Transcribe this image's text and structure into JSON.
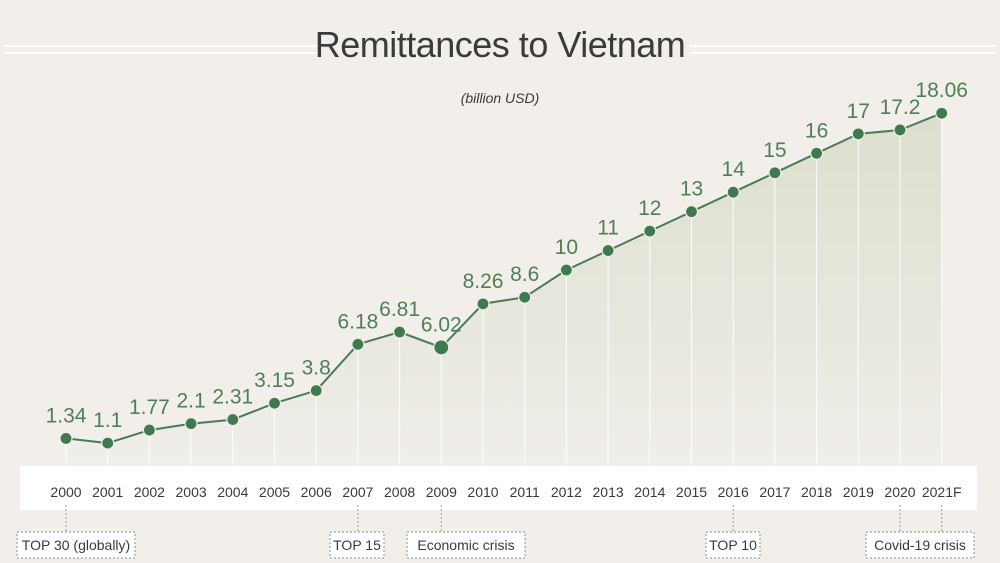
{
  "chart_data": {
    "type": "area",
    "title": "Remittances to Vietnam",
    "subtitle": "(billion USD)",
    "categories": [
      "2000",
      "2001",
      "2002",
      "2003",
      "2004",
      "2005",
      "2006",
      "2007",
      "2008",
      "2009",
      "2010",
      "2011",
      "2012",
      "2013",
      "2014",
      "2015",
      "2016",
      "2017",
      "2018",
      "2019",
      "2020",
      "2021F"
    ],
    "values": [
      1.34,
      1.1,
      1.77,
      2.1,
      2.31,
      3.15,
      3.8,
      6.18,
      6.81,
      6.02,
      8.26,
      8.6,
      10,
      11,
      12,
      13,
      14,
      15,
      16,
      17,
      17.2,
      18.06
    ],
    "value_labels": [
      "1.34",
      "1.1",
      "1.77",
      "2.1",
      "2.31",
      "3.15",
      "3.8",
      "6.18",
      "6.81",
      "6.02",
      "8.26",
      "8.6",
      "10",
      "11",
      "12",
      "13",
      "14",
      "15",
      "16",
      "17",
      "17.2",
      "18.06"
    ],
    "annotations": [
      {
        "category": "2000",
        "text": "TOP 30 (globally)"
      },
      {
        "category": "2007",
        "text": "TOP 15"
      },
      {
        "category": "2009",
        "text": "Economic crisis"
      },
      {
        "category": "2016",
        "text": "TOP 10"
      },
      {
        "category": "2020",
        "text": "Covid-19 crisis"
      },
      {
        "category": "2021F",
        "text": "Covid-19 crisis"
      }
    ],
    "highlight": "2009",
    "grid": "vertical",
    "legend": "none"
  },
  "colors": {
    "background": "#f2efeb",
    "line": "#4a7a56",
    "marker": "#3e7a4e",
    "label": "#4f7f57",
    "area": "#d9dccb",
    "axis_band": "#ffffff",
    "text": "#3a3a3a"
  }
}
